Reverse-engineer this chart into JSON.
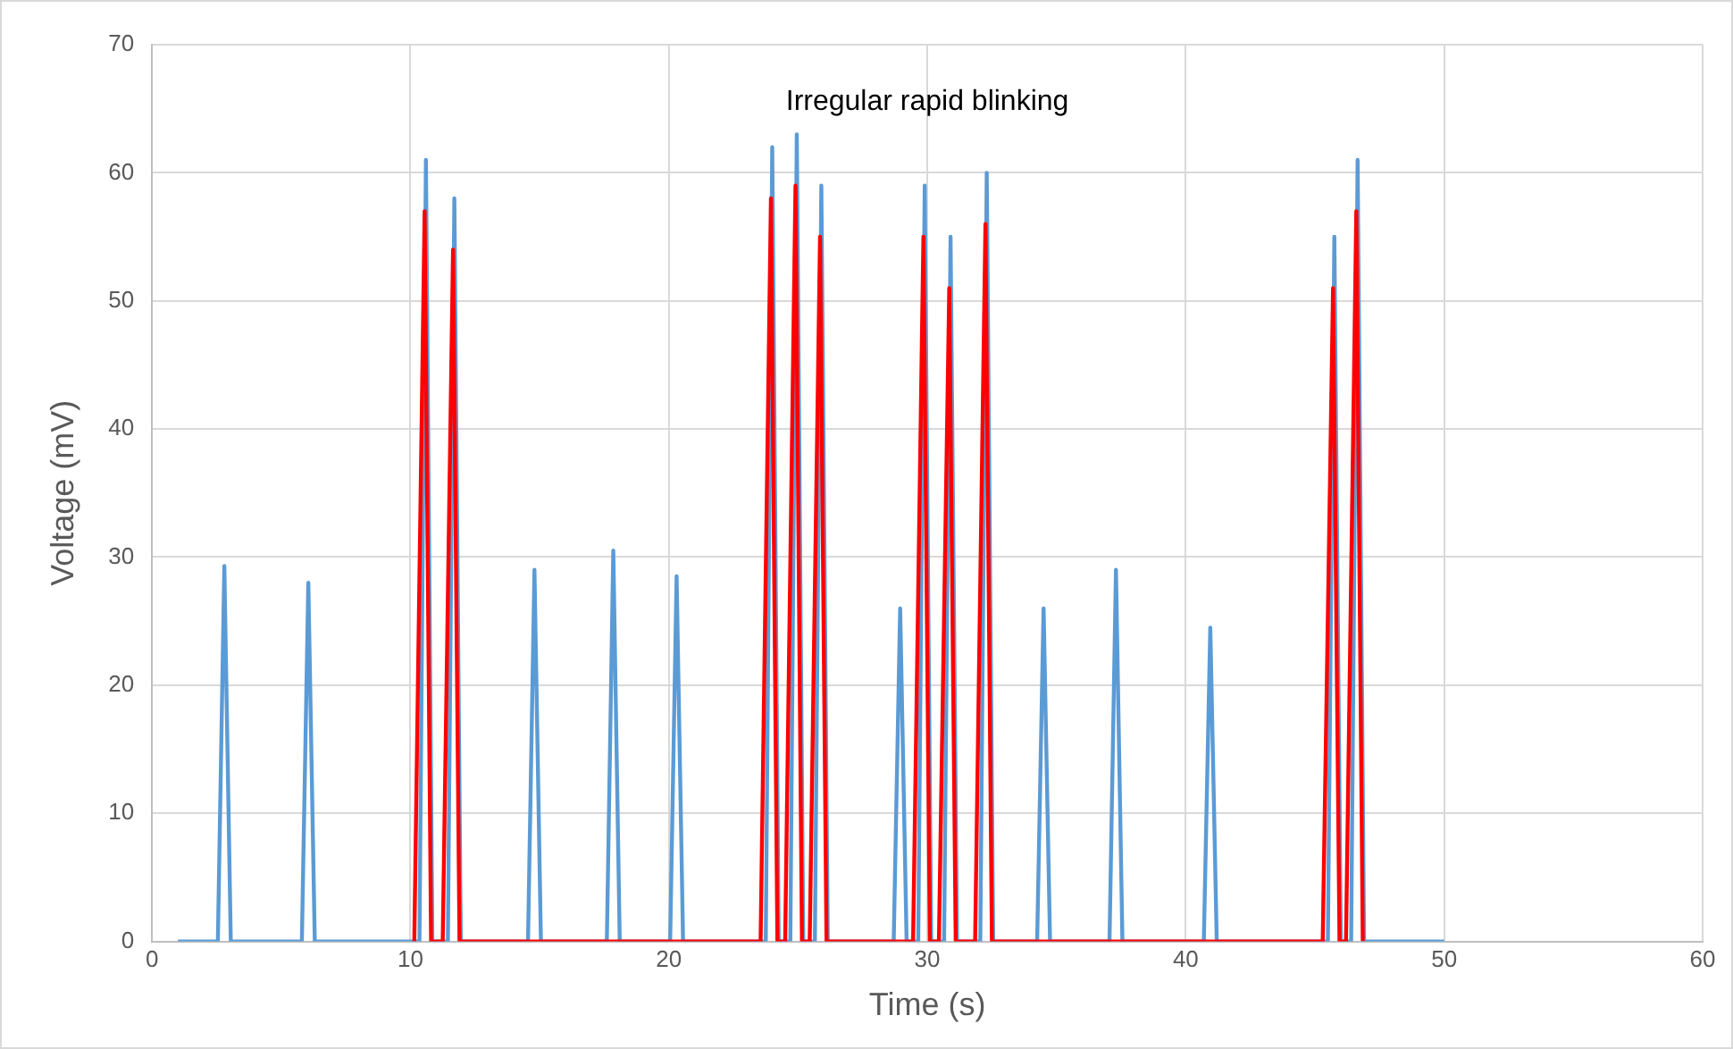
{
  "chart_data": {
    "type": "line",
    "title": "Irregular rapid blinking",
    "xlabel": "Time (s)",
    "ylabel": "Voltage (mV)",
    "xlim": [
      0,
      60
    ],
    "xticks": [
      0,
      10,
      20,
      30,
      40,
      50,
      60
    ],
    "ylim": [
      0,
      70
    ],
    "yticks": [
      0,
      10,
      20,
      30,
      40,
      50,
      60,
      70
    ],
    "grid": true,
    "marker": "none",
    "legend": false,
    "series": [
      {
        "color": "#ff0000",
        "x": [
          10.15,
          10.55,
          10.8,
          11.25,
          11.65,
          11.9,
          23.55,
          23.95,
          24.2,
          24.5,
          24.9,
          25.15,
          25.45,
          25.85,
          26.1,
          29.45,
          29.85,
          30.1,
          30.45,
          30.85,
          31.1,
          31.85,
          32.25,
          32.5,
          45.3,
          45.7,
          45.95,
          46.2,
          46.6,
          46.85
        ],
        "values": [
          0,
          57,
          0,
          0,
          54,
          0,
          0,
          58,
          0,
          0,
          59,
          0,
          0,
          55,
          0,
          0,
          55,
          0,
          0,
          51,
          0,
          0,
          56,
          0,
          0,
          51,
          0,
          0,
          57,
          0
        ]
      },
      {
        "color": "#5b9bd5",
        "x": [
          1,
          2.55,
          2.8,
          3.05,
          5.8,
          6.05,
          6.3,
          10.35,
          10.6,
          10.85,
          11.45,
          11.7,
          11.95,
          14.55,
          14.8,
          15.05,
          17.6,
          17.85,
          18.1,
          20.05,
          20.3,
          20.55,
          23.75,
          24.0,
          24.25,
          24.7,
          24.95,
          25.2,
          25.65,
          25.9,
          26.15,
          28.7,
          28.95,
          29.2,
          29.65,
          29.9,
          30.15,
          30.65,
          30.9,
          31.15,
          32.05,
          32.3,
          32.55,
          34.25,
          34.5,
          34.75,
          37.05,
          37.3,
          37.55,
          40.7,
          40.95,
          41.2,
          45.5,
          45.75,
          46.0,
          46.4,
          46.65,
          46.9,
          50
        ],
        "values": [
          0,
          0,
          29.3,
          0,
          0,
          28,
          0,
          0,
          61,
          0,
          0,
          58,
          0,
          0,
          29,
          0,
          0,
          30.5,
          0,
          0,
          28.5,
          0,
          0,
          62,
          0,
          0,
          63,
          0,
          0,
          59,
          0,
          0,
          26,
          0,
          0,
          59,
          0,
          0,
          55,
          0,
          0,
          60,
          0,
          0,
          26,
          0,
          0,
          29,
          0,
          0,
          24.5,
          0,
          0,
          55,
          0,
          0,
          61,
          0,
          0
        ]
      }
    ]
  }
}
